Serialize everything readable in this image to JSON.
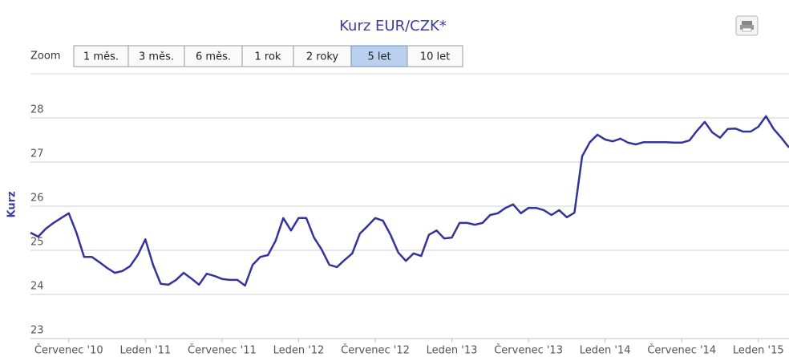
{
  "chart_data": {
    "type": "line",
    "title": "Kurz EUR/CZK*",
    "y_label": "Kurz",
    "zoom_label": "Zoom",
    "zoom_buttons": [
      "1 měs.",
      "3 měs.",
      "6 měs.",
      "1 rok",
      "2 roky",
      "5 let",
      "10 let"
    ],
    "zoom_selected": 5,
    "xlim": [
      2010.25,
      2015.2
    ],
    "xticks": [
      {
        "value": 2010.5,
        "label": "Červenec '10"
      },
      {
        "value": 2011,
        "label": "Leden '11"
      },
      {
        "value": 2011.5,
        "label": "Červenec '11"
      },
      {
        "value": 2012,
        "label": "Leden '12"
      },
      {
        "value": 2012.5,
        "label": "Červenec '12"
      },
      {
        "value": 2013,
        "label": "Leden '13"
      },
      {
        "value": 2013.5,
        "label": "Červenec '13"
      },
      {
        "value": 2014,
        "label": "Leden '14"
      },
      {
        "value": 2014.5,
        "label": "Červenec '14"
      },
      {
        "value": 2015,
        "label": "Leden '15"
      }
    ],
    "ylim": [
      23,
      29
    ],
    "yticks": [
      23,
      24,
      25,
      26,
      27,
      28
    ],
    "grid": true,
    "x": [
      2010.25,
      2010.3,
      2010.35,
      2010.4,
      2010.45,
      2010.5,
      2010.55,
      2010.6,
      2010.65,
      2010.7,
      2010.75,
      2010.8,
      2010.85,
      2010.9,
      2010.95,
      2011,
      2011.05,
      2011.1,
      2011.15,
      2011.2,
      2011.25,
      2011.3,
      2011.35,
      2011.4,
      2011.45,
      2011.5,
      2011.55,
      2011.6,
      2011.65,
      2011.7,
      2011.75,
      2011.8,
      2011.85,
      2011.9,
      2011.95,
      2012,
      2012.05,
      2012.1,
      2012.15,
      2012.2,
      2012.25,
      2012.3,
      2012.35,
      2012.4,
      2012.45,
      2012.5,
      2012.55,
      2012.6,
      2012.65,
      2012.7,
      2012.75,
      2012.8,
      2012.85,
      2012.9,
      2012.95,
      2013,
      2013.05,
      2013.1,
      2013.15,
      2013.2,
      2013.25,
      2013.3,
      2013.35,
      2013.4,
      2013.45,
      2013.5,
      2013.55,
      2013.6,
      2013.65,
      2013.7,
      2013.75,
      2013.8,
      2013.85,
      2013.9,
      2013.95,
      2014,
      2014.05,
      2014.1,
      2014.15,
      2014.2,
      2014.25,
      2014.3,
      2014.35,
      2014.4,
      2014.45,
      2014.5,
      2014.55,
      2014.6,
      2014.65,
      2014.7,
      2014.75,
      2014.8,
      2014.85,
      2014.9,
      2014.95,
      2015,
      2015.05,
      2015.1,
      2015.15,
      2015.2
    ],
    "series": [
      {
        "name": "Kurz",
        "color": "#33339a",
        "values": [
          25.4,
          25.31,
          25.49,
          25.62,
          25.73,
          25.84,
          25.4,
          24.85,
          24.85,
          24.73,
          24.6,
          24.49,
          24.53,
          24.64,
          24.89,
          25.25,
          24.67,
          24.24,
          24.22,
          24.33,
          24.49,
          24.36,
          24.22,
          24.47,
          24.42,
          24.35,
          24.33,
          24.33,
          24.2,
          24.67,
          24.85,
          24.89,
          25.22,
          25.73,
          25.45,
          25.73,
          25.73,
          25.29,
          25.02,
          24.67,
          24.62,
          24.78,
          24.93,
          25.38,
          25.55,
          25.73,
          25.67,
          25.35,
          24.95,
          24.76,
          24.93,
          24.87,
          25.35,
          25.45,
          25.27,
          25.29,
          25.62,
          25.62,
          25.58,
          25.62,
          25.8,
          25.84,
          25.96,
          26.04,
          25.84,
          25.96,
          25.96,
          25.91,
          25.8,
          25.91,
          25.75,
          25.85,
          27.13,
          27.45,
          27.62,
          27.51,
          27.47,
          27.53,
          27.44,
          27.4,
          27.45,
          27.45,
          27.45,
          27.45,
          27.44,
          27.44,
          27.49,
          27.71,
          27.91,
          27.67,
          27.55,
          27.75,
          27.76,
          27.69,
          27.69,
          27.8,
          28.04,
          27.75,
          27.55,
          27.33
        ]
      }
    ]
  }
}
